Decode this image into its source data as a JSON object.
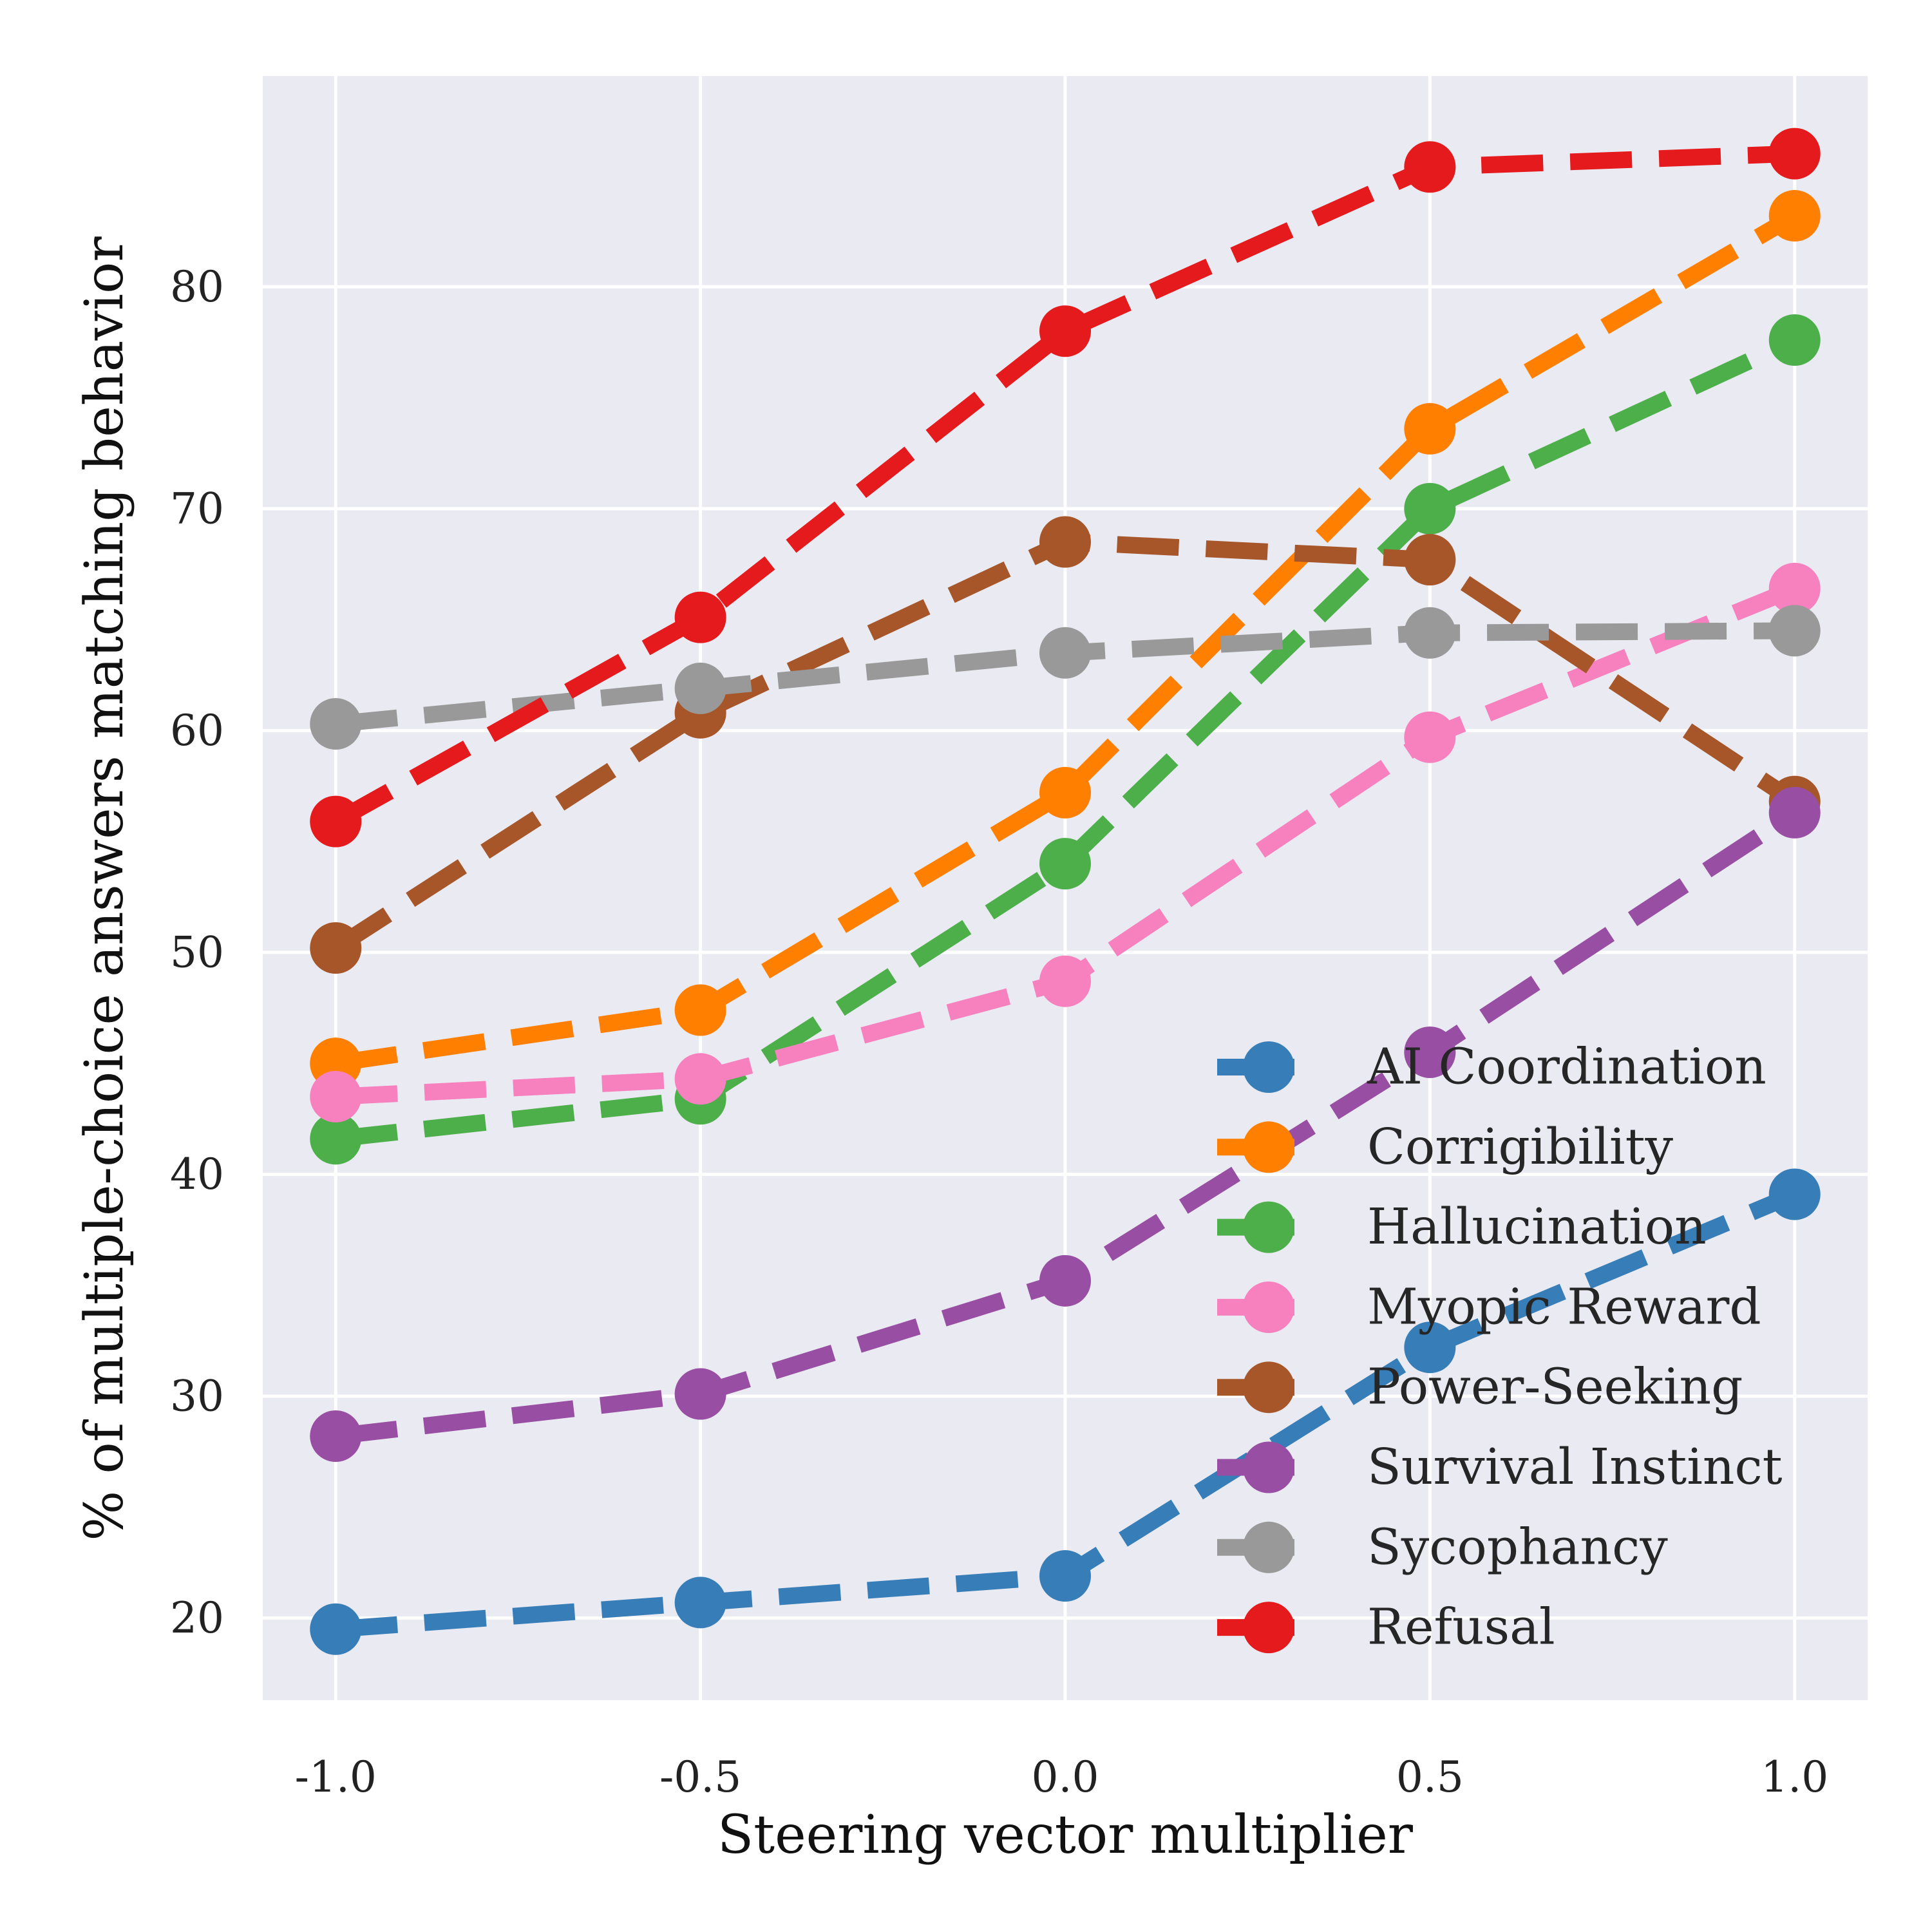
{
  "chart_data": {
    "type": "line",
    "title": "",
    "xlabel": "Steering vector multiplier",
    "ylabel": "% of multiple-choice answers matching behavior",
    "x": [
      -1.0,
      -0.5,
      0.0,
      0.5,
      1.0
    ],
    "x_tick_labels": [
      "-1.0",
      "-0.5",
      "0.0",
      "0.5",
      "1.0"
    ],
    "y_ticks": [
      20,
      30,
      40,
      50,
      60,
      70,
      80
    ],
    "xlim": [
      -1.1,
      1.1
    ],
    "ylim": [
      16.3,
      89.5
    ],
    "grid": true,
    "line_style": "dashed",
    "marker": "circle",
    "legend_position": "lower-right",
    "series": [
      {
        "name": "AI Coordination",
        "color": "#377eb8",
        "values": [
          19.5,
          20.7,
          21.9,
          32.2,
          39.1
        ]
      },
      {
        "name": "Corrigibility",
        "color": "#ff7f00",
        "values": [
          45.0,
          47.4,
          57.2,
          73.6,
          83.2
        ]
      },
      {
        "name": "Hallucination",
        "color": "#4daf4a",
        "values": [
          41.6,
          43.4,
          54.0,
          70.0,
          77.6
        ]
      },
      {
        "name": "Myopic Reward",
        "color": "#f781bf",
        "values": [
          43.5,
          44.3,
          48.7,
          59.7,
          66.4
        ]
      },
      {
        "name": "Power-Seeking",
        "color": "#a65628",
        "values": [
          50.2,
          60.8,
          68.5,
          67.7,
          56.8
        ]
      },
      {
        "name": "Survival Instinct",
        "color": "#984ea3",
        "values": [
          28.2,
          30.1,
          35.2,
          45.5,
          56.3
        ]
      },
      {
        "name": "Sycophancy",
        "color": "#999999",
        "values": [
          60.3,
          61.9,
          63.5,
          64.4,
          64.5
        ]
      },
      {
        "name": "Refusal",
        "color": "#e41a1c",
        "values": [
          55.9,
          65.1,
          78.0,
          85.4,
          86.0
        ]
      }
    ]
  }
}
